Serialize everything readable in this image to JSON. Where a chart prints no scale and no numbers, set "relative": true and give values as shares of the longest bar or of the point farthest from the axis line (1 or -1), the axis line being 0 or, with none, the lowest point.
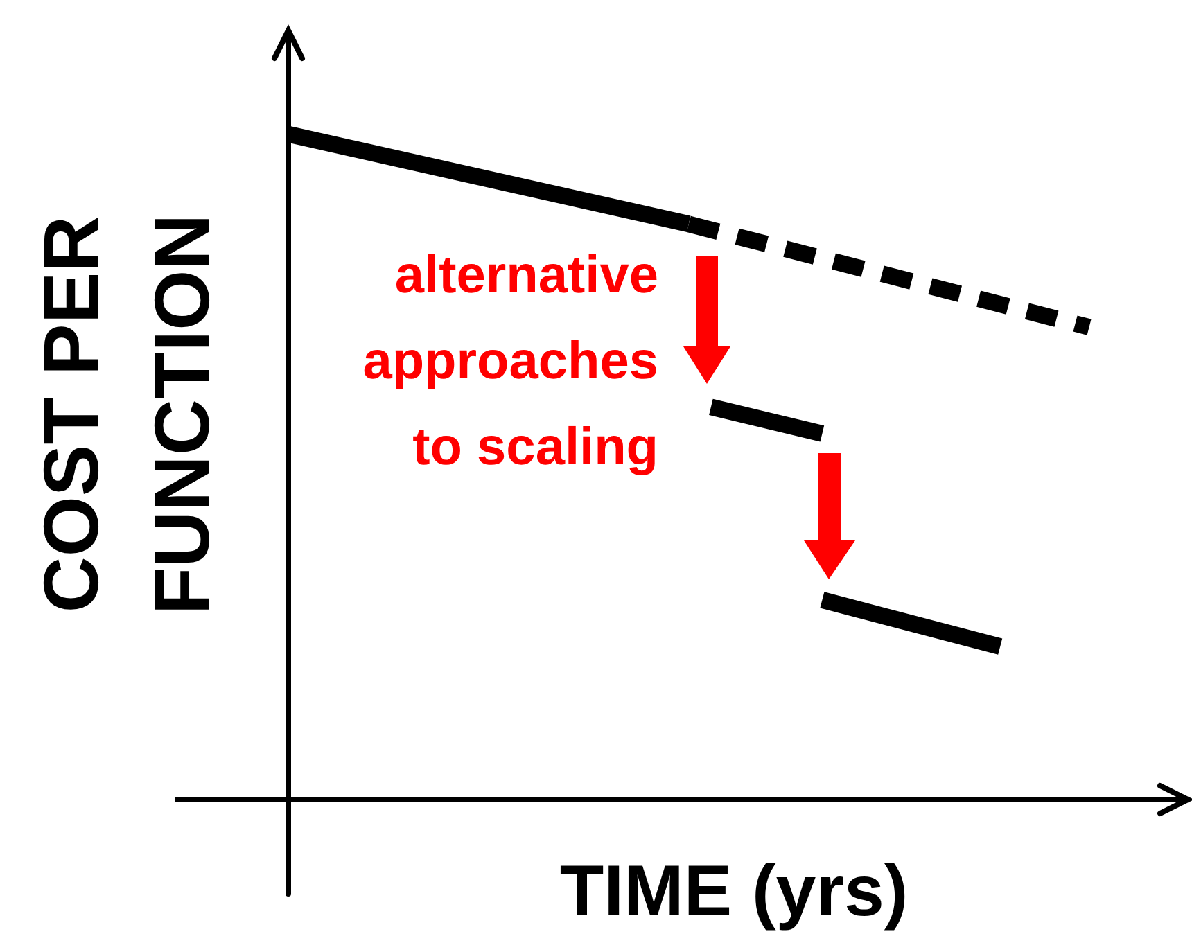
{
  "chart_data": {
    "type": "line",
    "xlabel": "TIME (yrs)",
    "ylabel": "COST PER FUNCTION",
    "relative": true,
    "annotations": [
      "alternative approaches to scaling"
    ],
    "categories": [
      null,
      null,
      null,
      null,
      null,
      null,
      null,
      null,
      null,
      null,
      null,
      null,
      null,
      null,
      null,
      null,
      null,
      null,
      null,
      null,
      null,
      null,
      null,
      null,
      null,
      null,
      null,
      null,
      null,
      null,
      null,
      null,
      null,
      null,
      null,
      null,
      null,
      null,
      null,
      null,
      null
    ],
    "series": [
      {
        "color": "#000000",
        "line_style": "solid",
        "values": [
          1,
          null,
          null,
          null,
          null,
          null,
          null,
          null,
          null,
          null,
          null,
          null,
          null,
          null,
          null,
          null,
          null,
          null,
          0.865,
          null,
          null,
          null,
          null,
          null,
          null,
          null,
          null,
          null,
          null,
          null,
          null,
          null,
          null,
          null,
          null,
          null,
          null,
          null,
          null,
          null,
          null
        ]
      },
      {
        "color": "#000000",
        "line_style": "dashed",
        "values": [
          null,
          null,
          null,
          null,
          null,
          null,
          null,
          null,
          null,
          null,
          null,
          null,
          null,
          null,
          null,
          null,
          null,
          null,
          0.865,
          null,
          null,
          null,
          null,
          null,
          null,
          null,
          null,
          null,
          null,
          null,
          null,
          null,
          null,
          null,
          null,
          null,
          0.71,
          null,
          null,
          null,
          null
        ]
      },
      {
        "color": "#000000",
        "line_style": "solid",
        "values": [
          null,
          null,
          null,
          null,
          null,
          null,
          null,
          null,
          null,
          null,
          null,
          null,
          null,
          null,
          null,
          null,
          null,
          null,
          null,
          0.59,
          null,
          null,
          null,
          null,
          0.55,
          null,
          null,
          null,
          null,
          null,
          null,
          null,
          null,
          null,
          null,
          null,
          null,
          null,
          null,
          null,
          null
        ]
      },
      {
        "color": "#000000",
        "line_style": "solid",
        "values": [
          null,
          null,
          null,
          null,
          null,
          null,
          null,
          null,
          null,
          null,
          null,
          null,
          null,
          null,
          null,
          null,
          null,
          null,
          null,
          null,
          null,
          null,
          null,
          null,
          0.3,
          null,
          null,
          null,
          null,
          null,
          null,
          null,
          0.23,
          null,
          null,
          null,
          null,
          null,
          null,
          null,
          null
        ]
      }
    ]
  }
}
